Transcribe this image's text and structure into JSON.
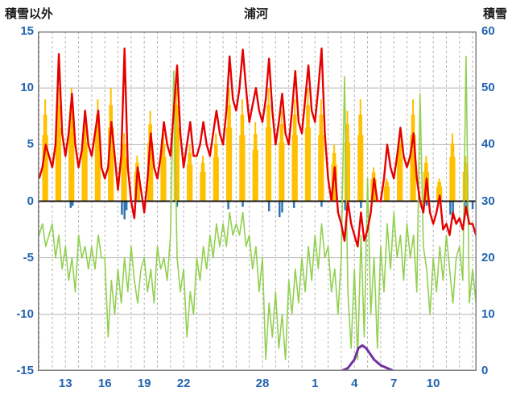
{
  "header": {
    "left": "積雪以外",
    "center": "浦河",
    "right": "積雪"
  },
  "colors": {
    "temperature": "#e60000",
    "green_series": "#92d050",
    "sunshine": "#ffc000",
    "precipitation": "#2e74b5",
    "snow_depth": "#7030a0",
    "grid": "#b3b3b3",
    "border": "#7f7f7f",
    "zero_line": "#1a1a1a",
    "tick_text": "#2363ae"
  },
  "chart_data": {
    "type": "line",
    "title": "浦河",
    "left_axis": {
      "label": "積雪以外",
      "min": -15,
      "max": 15,
      "ticks": [
        15,
        10,
        5,
        0,
        -5,
        -10,
        -15
      ]
    },
    "right_axis": {
      "label": "積雪",
      "min": 0,
      "max": 60,
      "ticks": [
        60,
        50,
        40,
        30,
        20,
        10,
        0
      ]
    },
    "x_axis": {
      "min": 10.9,
      "max": 44.3,
      "day_grid_start": 11,
      "day_grid_end": 44,
      "tick_positions": [
        13,
        16,
        19,
        22,
        28,
        32,
        35,
        38,
        41
      ],
      "tick_labels": [
        "13",
        "16",
        "19",
        "22",
        "28",
        "1",
        "4",
        "7",
        "10"
      ]
    },
    "series": [
      {
        "name": "sunshine",
        "type": "bars-up",
        "axis": "left",
        "color": "#ffc000",
        "per_day": [
          [
            11,
            9
          ],
          [
            12,
            10
          ],
          [
            13,
            10
          ],
          [
            14,
            8
          ],
          [
            15,
            9
          ],
          [
            16,
            10
          ],
          [
            17,
            6
          ],
          [
            18,
            4
          ],
          [
            19,
            8
          ],
          [
            20,
            6
          ],
          [
            21,
            10
          ],
          [
            22,
            5
          ],
          [
            23,
            4
          ],
          [
            24,
            6
          ],
          [
            25,
            10
          ],
          [
            26,
            9
          ],
          [
            27,
            7
          ],
          [
            28,
            10
          ],
          [
            29,
            8
          ],
          [
            30,
            9
          ],
          [
            31,
            10
          ],
          [
            32,
            9
          ],
          [
            33,
            5
          ],
          [
            34,
            8
          ],
          [
            35,
            9
          ],
          [
            36,
            3
          ],
          [
            37,
            2
          ],
          [
            38,
            6
          ],
          [
            39,
            9
          ],
          [
            40,
            4
          ],
          [
            41,
            2
          ],
          [
            42,
            6
          ],
          [
            43,
            4
          ]
        ]
      },
      {
        "name": "precipitation",
        "type": "bars-down",
        "axis": "left",
        "color": "#2e74b5",
        "points": [
          [
            13.4,
            -0.6
          ],
          [
            13.55,
            -0.4
          ],
          [
            17.3,
            -1.2
          ],
          [
            17.5,
            -1.6
          ],
          [
            17.65,
            -0.8
          ],
          [
            21.5,
            -0.5
          ],
          [
            25.4,
            -0.7
          ],
          [
            26.5,
            -0.5
          ],
          [
            28.5,
            -0.9
          ],
          [
            29.3,
            -1.4
          ],
          [
            29.5,
            -1.0
          ],
          [
            30.4,
            -0.6
          ],
          [
            32.5,
            -0.5
          ],
          [
            34.3,
            -0.8
          ],
          [
            35.5,
            -0.6
          ],
          [
            40.5,
            -0.4
          ],
          [
            42.3,
            -1.2
          ],
          [
            42.5,
            -1.6
          ],
          [
            43.4,
            -0.9
          ],
          [
            43.6,
            -1.3
          ],
          [
            44.0,
            -0.7
          ]
        ]
      },
      {
        "name": "green-series",
        "type": "line-grid",
        "axis": "left",
        "color": "#92d050",
        "width": 1.6,
        "t0": 11,
        "dt": 0.25,
        "values": [
          -3,
          -2,
          -4,
          -3,
          -2,
          -5,
          -3,
          -6,
          -4,
          -7,
          -5,
          -8,
          -3,
          -5,
          -4,
          -6,
          -4,
          -6,
          -3,
          -5,
          -5,
          -12,
          -7,
          -10,
          -6,
          -9,
          -5,
          -8,
          -4,
          -7,
          -9,
          -6,
          -5,
          -8,
          -6,
          -9,
          -4,
          -6,
          -5,
          -7,
          -3,
          11.5,
          -5,
          -8,
          -6,
          -12,
          -8,
          -10,
          -5,
          -7,
          -4,
          -6,
          -3,
          -5,
          -2,
          -4,
          -2,
          -4,
          -1,
          -3,
          -2,
          -3,
          -1,
          -4,
          -3,
          -6,
          -4,
          -8,
          -5,
          -14,
          -9,
          -12,
          -8,
          -13,
          -10,
          -14,
          -7,
          -10,
          -6,
          -9,
          -5,
          -8,
          -4,
          -7,
          -3,
          -6,
          -2,
          -5,
          -4,
          -8,
          -6,
          -10,
          -5,
          11,
          -8,
          -13,
          -6,
          -14,
          -3,
          -12,
          2,
          -10,
          -5,
          -13,
          -4,
          -8,
          -2,
          -6,
          -1,
          -5,
          -3,
          -7,
          -2,
          -5,
          -3,
          -8,
          9.5,
          -4,
          -6,
          -10,
          -5,
          -8,
          -4,
          -7,
          -3,
          -6,
          -9,
          -5,
          -4,
          -7,
          12.8,
          -9,
          -6,
          -9
        ]
      },
      {
        "name": "temperature",
        "type": "line-grid",
        "axis": "left",
        "color": "#e60000",
        "width": 2.4,
        "t0": 11,
        "dt": 0.25,
        "values": [
          2,
          3,
          5,
          4,
          3,
          5,
          13,
          6,
          4,
          6,
          9.5,
          5,
          3,
          4.5,
          8,
          5,
          4,
          6,
          8,
          3,
          2,
          3,
          7,
          4,
          1,
          4,
          13.5,
          3,
          0,
          -1.5,
          3,
          1,
          -1,
          2,
          6,
          3,
          2,
          4,
          7,
          5,
          4,
          8,
          12,
          6,
          3,
          5,
          7,
          4,
          4,
          5,
          7,
          5,
          4,
          6,
          8,
          6,
          5,
          8,
          12.8,
          9,
          8,
          10,
          13.4,
          10,
          7,
          8.5,
          10,
          8,
          7,
          9,
          12.6,
          8,
          5,
          7,
          9.5,
          6,
          5,
          8,
          11.5,
          7,
          6,
          9,
          12,
          8,
          7,
          10,
          13.5,
          6,
          2,
          0,
          3,
          -1,
          -2,
          -3.5,
          0,
          -2,
          -3,
          -4,
          -1,
          -3.5,
          -2.5,
          -1,
          2,
          0,
          0,
          2,
          5,
          3,
          2,
          4,
          6.5,
          4,
          3,
          4,
          6,
          2,
          0,
          -1,
          2,
          -1,
          -2,
          -1,
          0.5,
          -2.5,
          -2,
          -3,
          -1,
          -2,
          -1.5,
          -2.5,
          -0.5,
          -2,
          -2,
          -3
        ]
      },
      {
        "name": "snow-depth",
        "type": "line-points",
        "axis": "right",
        "color": "#7030a0",
        "width": 3,
        "points": [
          [
            10.9,
            0
          ],
          [
            34,
            0
          ],
          [
            34.5,
            0.5
          ],
          [
            35,
            2
          ],
          [
            35.3,
            4
          ],
          [
            35.6,
            4.5
          ],
          [
            35.9,
            4
          ],
          [
            36.2,
            3
          ],
          [
            36.5,
            2
          ],
          [
            37,
            1
          ],
          [
            37.5,
            0.5
          ],
          [
            38,
            0
          ],
          [
            44.3,
            0
          ]
        ]
      }
    ]
  }
}
